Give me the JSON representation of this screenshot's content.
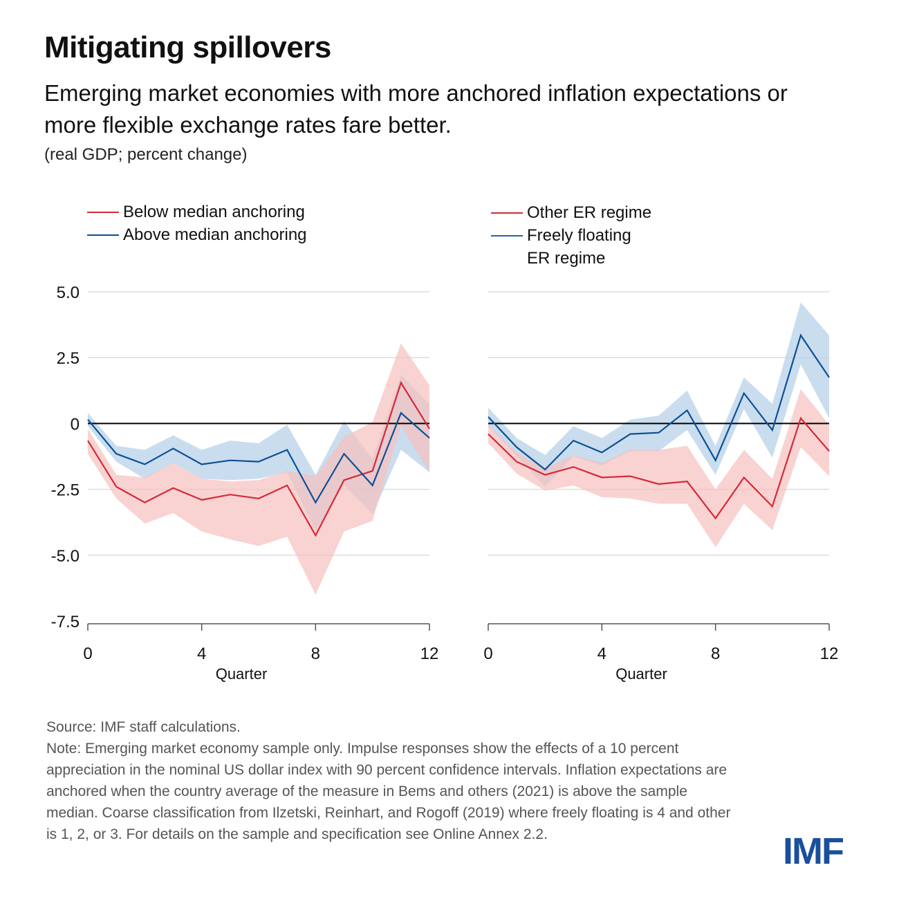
{
  "title": "Mitigating spillovers",
  "subtitle": "Emerging market economies with more anchored inflation expectations or more flexible exchange rates fare better.",
  "units": "(real GDP; percent change)",
  "colors": {
    "red": "#d62839",
    "blue": "#0b4f96",
    "red_band": "#f7c1be",
    "blue_band": "#b7d1e8",
    "zero_line": "#000000",
    "grid": "#dddddd"
  },
  "legends": [
    {
      "items": [
        {
          "label": "Below median anchoring",
          "color": "#d62839"
        },
        {
          "label": "Above median anchoring",
          "color": "#0b4f96"
        }
      ]
    },
    {
      "items": [
        {
          "label": "Other ER regime",
          "color": "#d62839"
        },
        {
          "label": "Freely floating",
          "color": "#0b4f96",
          "continuation": "ER regime"
        }
      ]
    }
  ],
  "chart_data": [
    {
      "type": "line",
      "title": "",
      "xlabel": "Quarter",
      "ylabel": "",
      "x": [
        0,
        1,
        2,
        3,
        4,
        5,
        6,
        7,
        8,
        9,
        10,
        11,
        12
      ],
      "xticks": [
        0,
        4,
        8,
        12
      ],
      "xtick_labels": [
        "0",
        "4",
        "8",
        "12"
      ],
      "ylim": [
        -7.5,
        5.0
      ],
      "yticks": [
        5.0,
        2.5,
        0,
        -2.5,
        -5.0,
        -7.5
      ],
      "ytick_labels": [
        "5.0",
        "2.5",
        "0",
        "-2.5",
        "-5.0",
        "-7.5"
      ],
      "grid": true,
      "series": [
        {
          "name": "Below median anchoring",
          "color": "#d62839",
          "values": [
            -0.65,
            -2.4,
            -3.0,
            -2.45,
            -2.9,
            -2.7,
            -2.85,
            -2.35,
            -4.25,
            -2.15,
            -1.8,
            1.55,
            -0.2
          ],
          "upper": [
            -0.2,
            -1.95,
            -2.05,
            -1.5,
            -2.1,
            -2.2,
            -2.15,
            -1.8,
            -2.0,
            -0.5,
            0.05,
            3.05,
            1.45
          ],
          "lower": [
            -1.15,
            -2.85,
            -3.8,
            -3.4,
            -4.1,
            -4.4,
            -4.65,
            -4.3,
            -6.5,
            -4.1,
            -3.7,
            -0.1,
            -1.85
          ]
        },
        {
          "name": "Above median anchoring",
          "color": "#0b4f96",
          "values": [
            0.15,
            -1.15,
            -1.55,
            -0.95,
            -1.55,
            -1.4,
            -1.45,
            -1.0,
            -3.0,
            -1.15,
            -2.35,
            0.4,
            -0.55
          ],
          "upper": [
            0.4,
            -0.85,
            -1.0,
            -0.45,
            -1.0,
            -0.65,
            -0.75,
            -0.05,
            -1.95,
            0.1,
            -1.35,
            1.85,
            0.75
          ],
          "lower": [
            -0.1,
            -1.45,
            -2.1,
            -1.5,
            -2.1,
            -2.15,
            -2.1,
            -1.85,
            -4.1,
            -2.35,
            -3.45,
            -1.0,
            -1.85
          ]
        }
      ]
    },
    {
      "type": "line",
      "title": "",
      "xlabel": "Quarter",
      "ylabel": "",
      "x": [
        0,
        1,
        2,
        3,
        4,
        5,
        6,
        7,
        8,
        9,
        10,
        11,
        12
      ],
      "xticks": [
        0,
        4,
        8,
        12
      ],
      "xtick_labels": [
        "0",
        "4",
        "8",
        "12"
      ],
      "ylim": [
        -7.5,
        5.0
      ],
      "yticks": [
        5.0,
        2.5,
        0,
        -2.5,
        -5.0,
        -7.5
      ],
      "grid": true,
      "series": [
        {
          "name": "Other ER regime",
          "color": "#d62839",
          "values": [
            -0.4,
            -1.45,
            -1.95,
            -1.65,
            -2.05,
            -2.0,
            -2.3,
            -2.2,
            -3.6,
            -2.05,
            -3.15,
            0.2,
            -1.05
          ],
          "upper": [
            -0.05,
            -1.1,
            -1.7,
            -1.2,
            -1.5,
            -1.0,
            -1.0,
            -0.85,
            -2.5,
            -1.0,
            -2.1,
            1.3,
            -0.05
          ],
          "lower": [
            -0.75,
            -1.9,
            -2.55,
            -2.35,
            -2.8,
            -2.85,
            -3.05,
            -3.05,
            -4.7,
            -3.05,
            -4.05,
            -0.9,
            -2.0
          ]
        },
        {
          "name": "Freely floating ER regime",
          "color": "#0b4f96",
          "values": [
            0.25,
            -0.9,
            -1.75,
            -0.65,
            -1.1,
            -0.4,
            -0.35,
            0.5,
            -1.4,
            1.15,
            -0.25,
            3.35,
            1.75
          ],
          "upper": [
            0.6,
            -0.55,
            -1.2,
            -0.1,
            -0.55,
            0.15,
            0.3,
            1.25,
            -0.85,
            1.75,
            0.75,
            4.6,
            3.35
          ],
          "lower": [
            -0.1,
            -1.25,
            -2.4,
            -1.25,
            -1.6,
            -1.05,
            -1.05,
            -0.25,
            -1.95,
            0.55,
            -1.3,
            2.25,
            0.2
          ]
        }
      ]
    }
  ],
  "footer": {
    "source": "Source: IMF staff calculations.",
    "note": "Note: Emerging market economy sample only. Impulse responses show the effects of a 10 percent appreciation in the nominal US dollar index with 90 percent confidence intervals. Inflation expectations are anchored when the country average of the measure in Bems and others (2021) is above the sample median. Coarse classification from Ilzetski, Reinhart, and Rogoff (2019) where freely floating is 4 and other is 1, 2, or 3. For details on the sample and specification see Online Annex 2.2."
  },
  "logo": "IMF"
}
